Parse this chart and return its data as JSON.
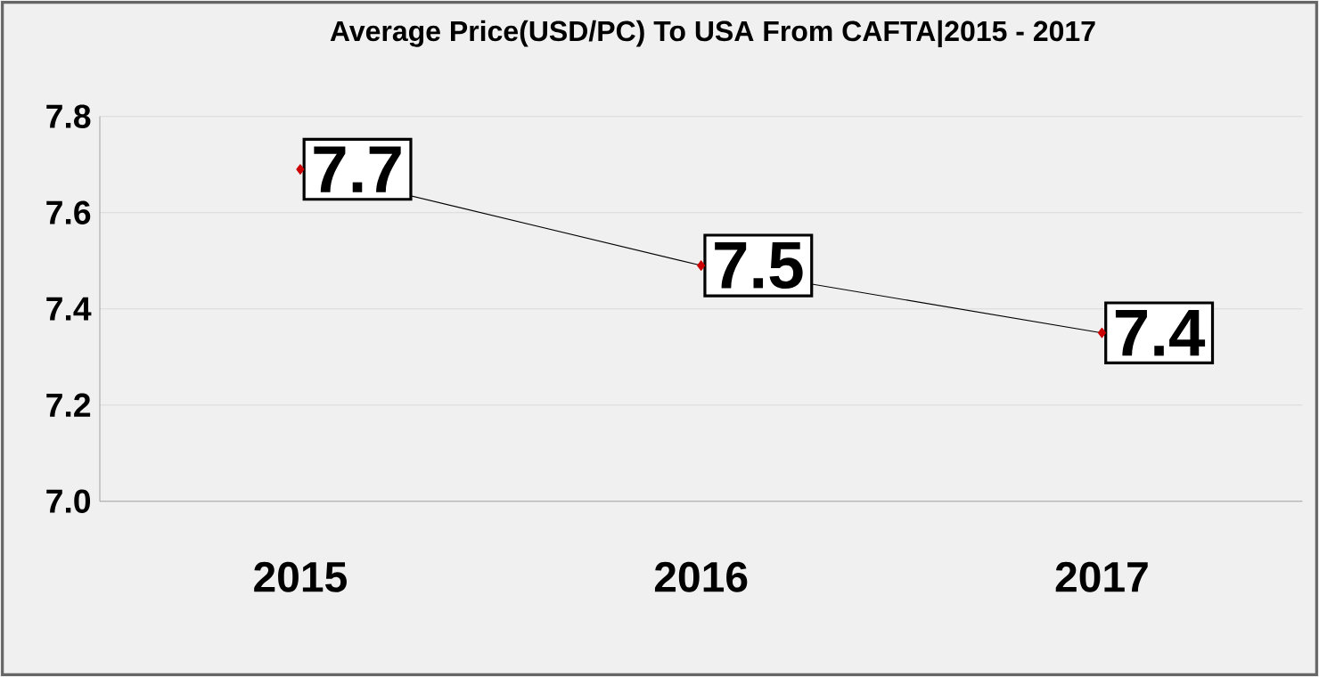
{
  "chart_data": {
    "type": "line",
    "title": "Average Price(USD/PC) To USA From CAFTA|2015 - 2017",
    "categories": [
      "2015",
      "2016",
      "2017"
    ],
    "series": [
      {
        "color": "#000000",
        "values": [
          7.69,
          7.49,
          7.35
        ],
        "value_labels": [
          "7.7",
          "7.5",
          "7.4"
        ]
      }
    ],
    "ylim": [
      7.0,
      7.8
    ],
    "yticks": [
      {
        "value": 7,
        "label": "7.0"
      },
      7.2,
      7.4,
      7.6,
      7.8
    ],
    "grid": "y",
    "marker": "diamond",
    "line_style": "solid"
  }
}
